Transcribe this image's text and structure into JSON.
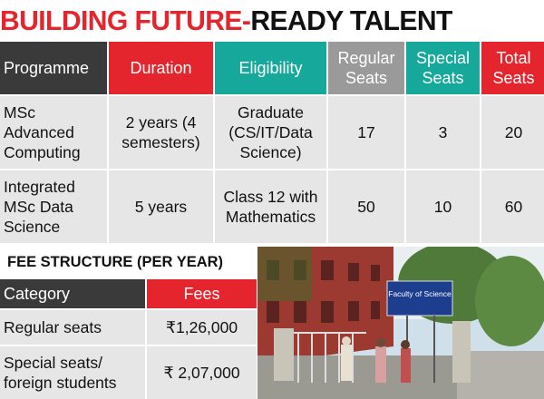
{
  "title": {
    "red": "BUILDING FUTURE-",
    "black": "READY TALENT"
  },
  "table": {
    "header": [
      "Programme",
      "Duration",
      "Eligibility",
      "Regular Seats",
      "Special Seats",
      "Total Seats"
    ],
    "rows": [
      [
        "MSc Advanced Computing",
        "2 years (4 semesters)",
        "Graduate (CS/IT/Data Science)",
        "17",
        "3",
        "20"
      ],
      [
        "Integrated MSc Data Science",
        "5 years",
        "Class 12 with Mathematics",
        "50",
        "10",
        "60"
      ]
    ]
  },
  "fees": {
    "heading": "FEE STRUCTURE (PER YEAR)",
    "header": [
      "Category",
      "Fees"
    ],
    "rows": [
      [
        "Regular seats",
        "₹1,26,000"
      ],
      [
        "Special seats/ foreign students",
        "₹ 2,07,000"
      ]
    ]
  },
  "photo": {
    "sign": "Faculty of Science"
  }
}
